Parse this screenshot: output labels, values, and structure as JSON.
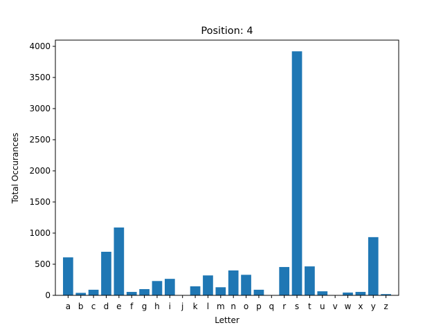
{
  "chart_data": {
    "type": "bar",
    "title": "Position: 4",
    "xlabel": "Letter",
    "ylabel": "Total Occurances",
    "categories": [
      "a",
      "b",
      "c",
      "d",
      "e",
      "f",
      "g",
      "h",
      "i",
      "j",
      "k",
      "l",
      "m",
      "n",
      "o",
      "p",
      "q",
      "r",
      "s",
      "t",
      "u",
      "v",
      "w",
      "x",
      "y",
      "z"
    ],
    "values": [
      610,
      40,
      90,
      700,
      1090,
      55,
      100,
      230,
      265,
      0,
      145,
      320,
      130,
      400,
      330,
      90,
      0,
      455,
      3920,
      465,
      65,
      0,
      45,
      55,
      935,
      20
    ],
    "ylim": [
      0,
      4100
    ],
    "yticks": [
      0,
      500,
      1000,
      1500,
      2000,
      2500,
      3000,
      3500,
      4000
    ],
    "ytick_labels": [
      "0",
      "500",
      "1000",
      "1500",
      "2000",
      "2500",
      "3000",
      "3500",
      "4000"
    ],
    "grid": false,
    "bar_color": "#1f77b4"
  }
}
